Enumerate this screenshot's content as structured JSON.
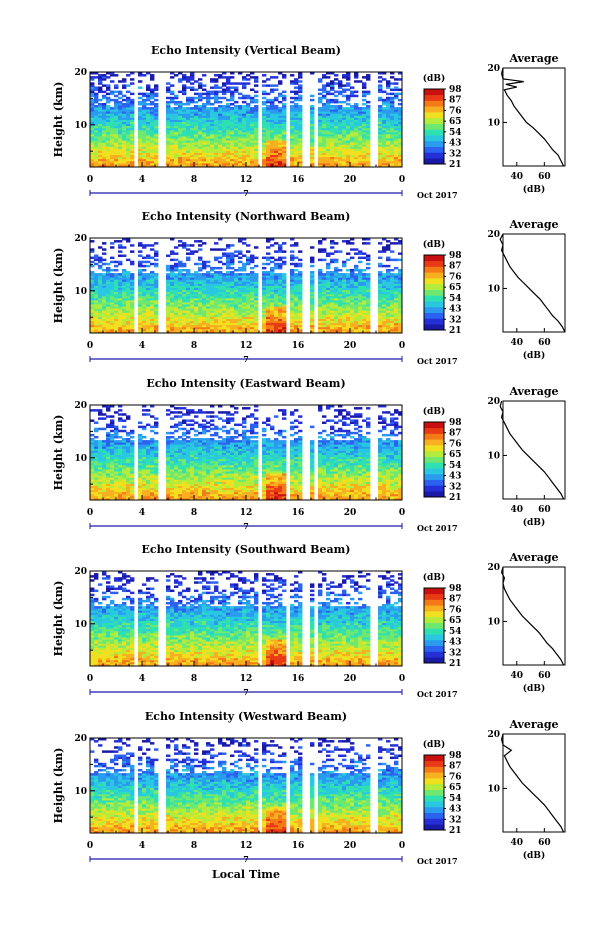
{
  "figure": {
    "xlabel_bottom": "Local Time"
  },
  "colorbar": {
    "unit": "(dB)",
    "colors": [
      "#1a1aa8",
      "#2430d6",
      "#2b62f0",
      "#2a9cf0",
      "#29c8e0",
      "#2fe0b0",
      "#6fe870",
      "#b4ec3c",
      "#f0e020",
      "#f8b020",
      "#f47a18",
      "#e83a14",
      "#c81010"
    ]
  },
  "average_panel": {
    "title": "Average",
    "xlabel": "(dB)",
    "xticks": [
      "40",
      "60"
    ],
    "yticks": [
      "10",
      "20"
    ]
  },
  "chart_data": [
    {
      "type": "heatmap",
      "title": "Echo Intensity (Vertical Beam)",
      "ylabel": "Height (km)",
      "yticks": [
        "10",
        "20"
      ],
      "ylim": [
        2,
        20
      ],
      "xticks": [
        "0",
        "4",
        "8",
        "12",
        "16",
        "20",
        "0"
      ],
      "xlim": [
        0,
        24
      ],
      "date_label": "Oct 2017",
      "date_marker": "7",
      "colorbar_ticks": [
        "21",
        "32",
        "43",
        "54",
        "65",
        "76",
        "87",
        "98"
      ],
      "profile_height_km": [
        2,
        3,
        4,
        5,
        6,
        7,
        8,
        9,
        10,
        11,
        12,
        13,
        14,
        15,
        16,
        16.5,
        17,
        17.5,
        18,
        19,
        20
      ],
      "profile_db": [
        74,
        72,
        70,
        66,
        63,
        60,
        56,
        52,
        47,
        44,
        41,
        38,
        36,
        33,
        31,
        40,
        32,
        45,
        30,
        29,
        30
      ]
    },
    {
      "type": "heatmap",
      "title": "Echo Intensity (Northward Beam)",
      "ylabel": "Height (km)",
      "yticks": [
        "10",
        "20"
      ],
      "ylim": [
        2,
        20
      ],
      "xticks": [
        "0",
        "4",
        "8",
        "12",
        "16",
        "20",
        "0"
      ],
      "xlim": [
        0,
        24
      ],
      "date_label": "Oct 2017",
      "date_marker": "7",
      "colorbar_ticks": [
        "21",
        "32",
        "43",
        "54",
        "65",
        "76",
        "87",
        "98"
      ],
      "profile_height_km": [
        2,
        3,
        4,
        5,
        6,
        7,
        8,
        9,
        10,
        11,
        12,
        13,
        14,
        15,
        16,
        17,
        18,
        19,
        20
      ],
      "profile_db": [
        75,
        73,
        70,
        66,
        63,
        60,
        57,
        53,
        49,
        45,
        41,
        38,
        35,
        33,
        31,
        29,
        30,
        28,
        30
      ]
    },
    {
      "type": "heatmap",
      "title": "Echo Intensity (Eastward Beam)",
      "ylabel": "Height (km)",
      "yticks": [
        "10",
        "20"
      ],
      "ylim": [
        2,
        20
      ],
      "xticks": [
        "0",
        "4",
        "8",
        "12",
        "16",
        "20",
        "0"
      ],
      "xlim": [
        0,
        24
      ],
      "date_label": "Oct 2017",
      "date_marker": "7",
      "colorbar_ticks": [
        "21",
        "32",
        "43",
        "54",
        "65",
        "76",
        "87",
        "98"
      ],
      "profile_height_km": [
        2,
        3,
        4,
        5,
        6,
        7,
        8,
        9,
        10,
        11,
        12,
        13,
        14,
        15,
        16,
        17,
        18,
        19,
        20
      ],
      "profile_db": [
        74,
        72,
        69,
        66,
        63,
        60,
        56,
        52,
        48,
        44,
        41,
        38,
        35,
        33,
        31,
        29,
        30,
        28,
        29
      ]
    },
    {
      "type": "heatmap",
      "title": "Echo Intensity (Southward Beam)",
      "ylabel": "Height (km)",
      "yticks": [
        "10",
        "20"
      ],
      "ylim": [
        2,
        20
      ],
      "xticks": [
        "0",
        "4",
        "8",
        "12",
        "16",
        "20",
        "0"
      ],
      "xlim": [
        0,
        24
      ],
      "date_label": "Oct 2017",
      "date_marker": "7",
      "colorbar_ticks": [
        "21",
        "32",
        "43",
        "54",
        "65",
        "76",
        "87",
        "98"
      ],
      "profile_height_km": [
        2,
        3,
        4,
        5,
        6,
        7,
        8,
        9,
        10,
        11,
        12,
        13,
        14,
        15,
        16,
        17,
        18,
        19,
        20
      ],
      "profile_db": [
        74,
        72,
        69,
        66,
        62,
        59,
        56,
        52,
        48,
        44,
        41,
        38,
        35,
        33,
        31,
        30,
        31,
        29,
        30
      ]
    },
    {
      "type": "heatmap",
      "title": "Echo Intensity (Westward Beam)",
      "ylabel": "Height (km)",
      "yticks": [
        "10",
        "20"
      ],
      "ylim": [
        2,
        20
      ],
      "xticks": [
        "0",
        "4",
        "8",
        "12",
        "16",
        "20",
        "0"
      ],
      "xlim": [
        0,
        24
      ],
      "date_label": "Oct 2017",
      "date_marker": "7",
      "colorbar_ticks": [
        "21",
        "32",
        "43",
        "54",
        "65",
        "76",
        "87",
        "98"
      ],
      "profile_height_km": [
        2,
        3,
        4,
        5,
        6,
        7,
        8,
        9,
        10,
        11,
        12,
        13,
        14,
        15,
        16,
        17,
        18,
        19,
        20
      ],
      "profile_db": [
        74,
        72,
        69,
        66,
        63,
        60,
        56,
        52,
        48,
        44,
        41,
        38,
        35,
        33,
        31,
        36,
        30,
        29,
        30
      ]
    }
  ]
}
